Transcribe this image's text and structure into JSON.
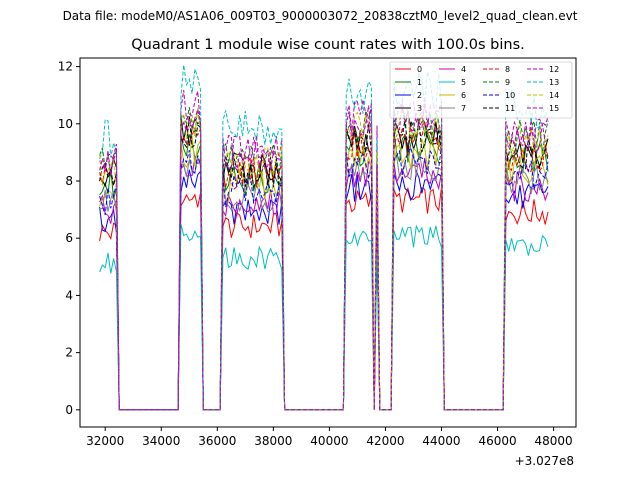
{
  "suptitle": "Data file: modeM0/AS1A06_009T03_9000003072_20838cztM0_level2_quad_clean.evt",
  "chart_data": {
    "type": "line",
    "title": "Quadrant 1 module wise count rates with 100.0s bins.",
    "xlabel": "",
    "ylabel": "",
    "x_offset_label": "+3.027e8",
    "xlim": [
      31100,
      48800
    ],
    "ylim": [
      -0.6,
      12.3
    ],
    "xticks": [
      32000,
      34000,
      36000,
      38000,
      40000,
      42000,
      44000,
      46000,
      48000
    ],
    "xtick_labels": [
      "32000",
      "34000",
      "36000",
      "38000",
      "40000",
      "42000",
      "44000",
      "46000",
      "48000"
    ],
    "yticks": [
      0,
      2,
      4,
      6,
      8,
      10,
      12
    ],
    "ytick_labels": [
      "0",
      "2",
      "4",
      "6",
      "8",
      "10",
      "12"
    ],
    "legend_position": "top-right",
    "on_segments": [
      {
        "start": 31800,
        "end": 32400
      },
      {
        "start": 34700,
        "end": 35400
      },
      {
        "start": 36200,
        "end": 38300
      },
      {
        "start": 40600,
        "end": 41500
      },
      {
        "start": 41650,
        "end": 41750
      },
      {
        "start": 42300,
        "end": 44000
      },
      {
        "start": 46300,
        "end": 47800
      }
    ],
    "gap_ends": [
      32600,
      34500,
      35500,
      36000,
      38400,
      40500,
      41600,
      41800,
      42200,
      44200,
      46200
    ],
    "series": [
      {
        "name": "0",
        "color": "#ff0000",
        "dash": "solid",
        "level": 6.9
      },
      {
        "name": "1",
        "color": "#008000",
        "dash": "solid",
        "level": 8.7
      },
      {
        "name": "2",
        "color": "#0000ff",
        "dash": "solid",
        "level": 7.4
      },
      {
        "name": "3",
        "color": "#000000",
        "dash": "solid",
        "level": 9.1
      },
      {
        "name": "4",
        "color": "#bf00bf",
        "dash": "solid",
        "level": 7.8
      },
      {
        "name": "5",
        "color": "#00bfbf",
        "dash": "solid",
        "level": 5.7
      },
      {
        "name": "6",
        "color": "#bfbf00",
        "dash": "solid",
        "level": 8.4
      },
      {
        "name": "7",
        "color": "#808080",
        "dash": "solid",
        "level": 8.0
      },
      {
        "name": "8",
        "color": "#ff0000",
        "dash": "dashed",
        "level": 8.9
      },
      {
        "name": "9",
        "color": "#008000",
        "dash": "dashed",
        "level": 9.5
      },
      {
        "name": "10",
        "color": "#0000ff",
        "dash": "dashed",
        "level": 8.2
      },
      {
        "name": "11",
        "color": "#000000",
        "dash": "dashed",
        "level": 9.0
      },
      {
        "name": "12",
        "color": "#bf00bf",
        "dash": "dashed",
        "level": 9.8
      },
      {
        "name": "13",
        "color": "#00bfbf",
        "dash": "dashed",
        "level": 10.5
      },
      {
        "name": "14",
        "color": "#bfbf00",
        "dash": "dashed",
        "level": 9.3
      },
      {
        "name": "15",
        "color": "#bf00bf",
        "dash": "dashed",
        "level": 9.6
      }
    ]
  }
}
